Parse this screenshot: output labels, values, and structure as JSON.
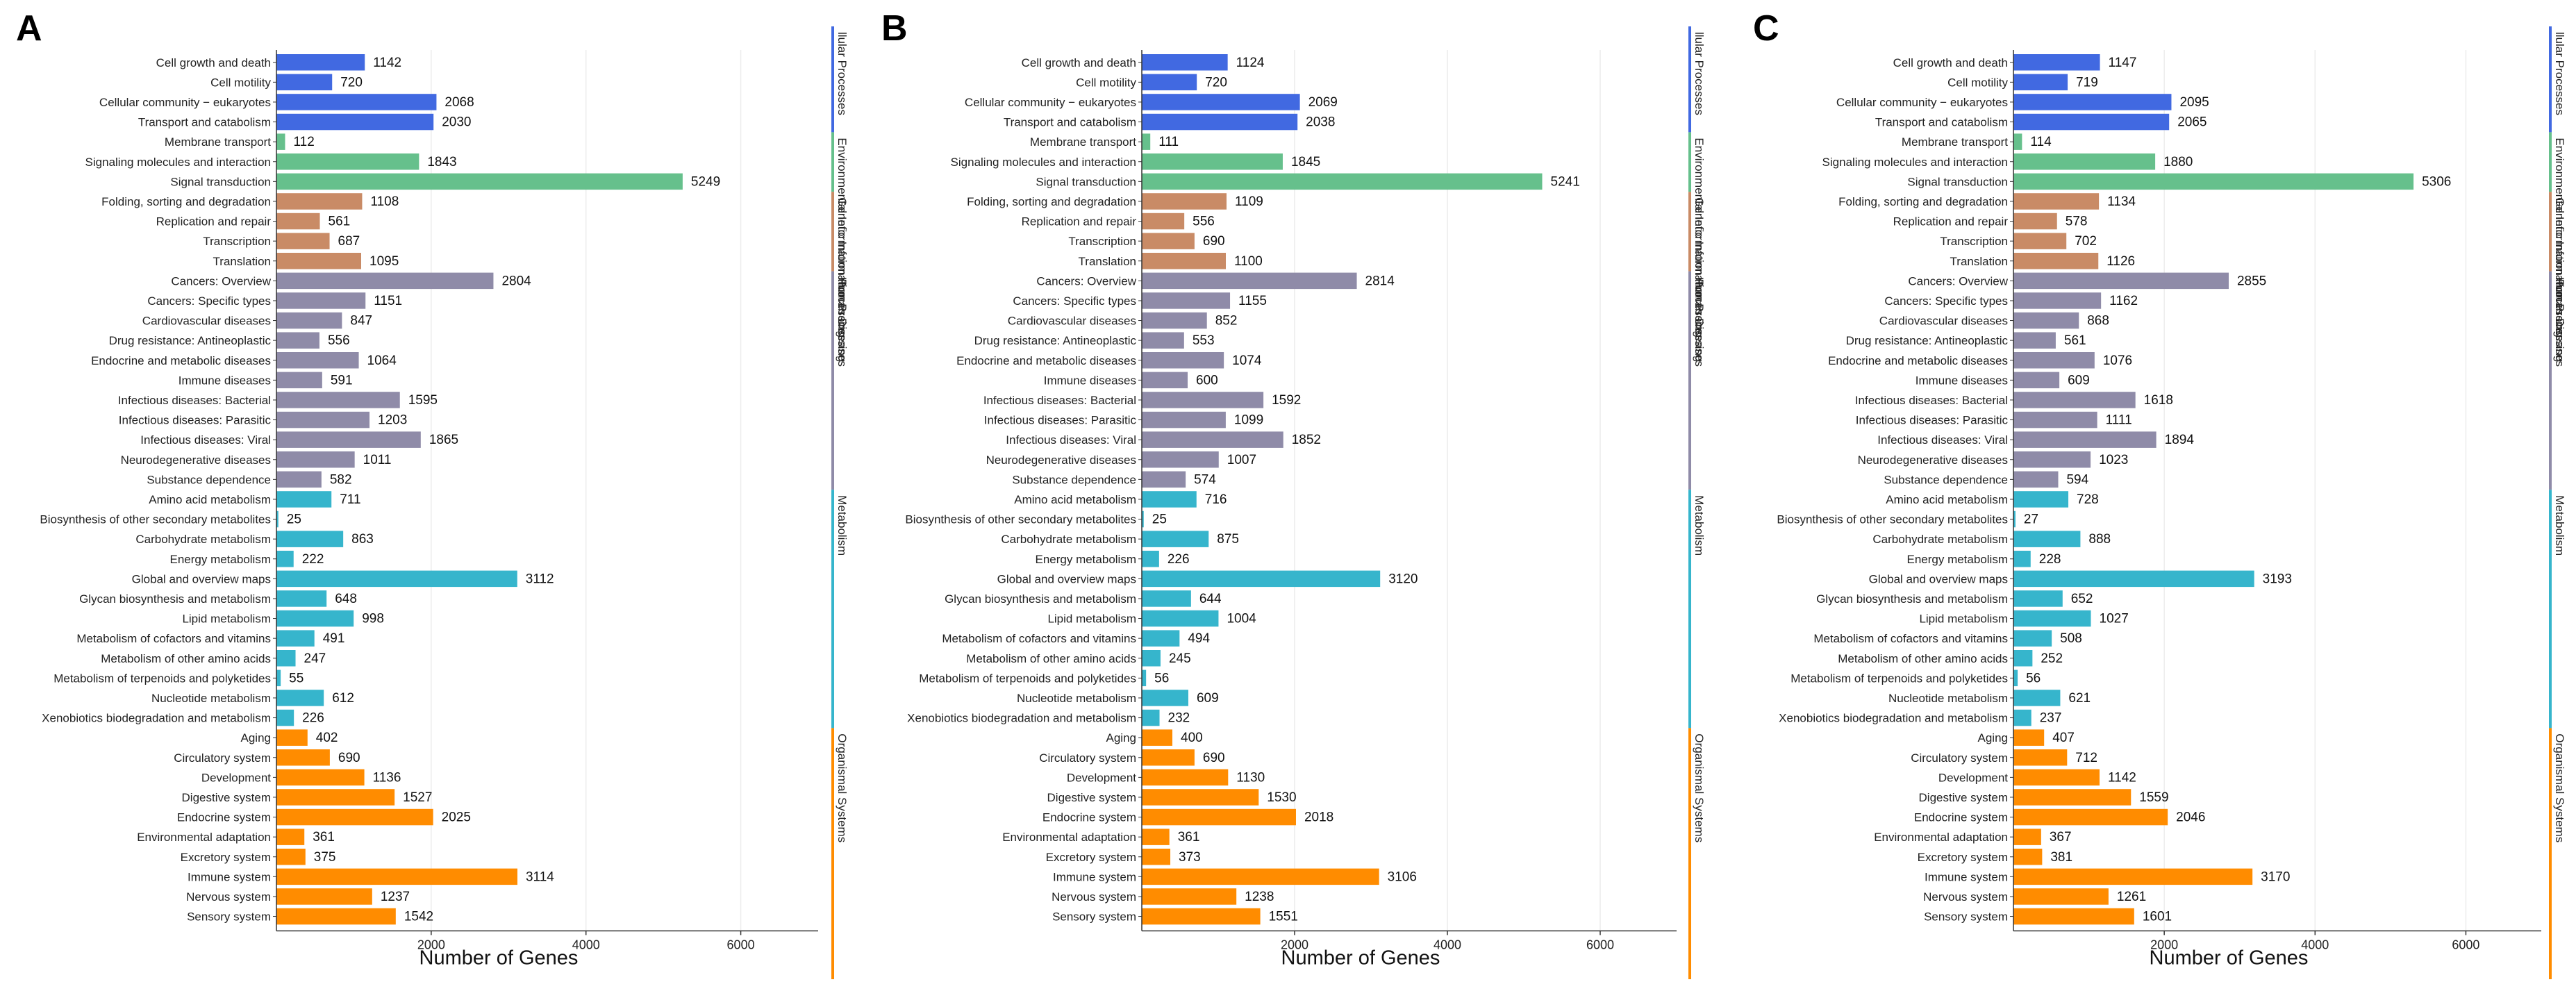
{
  "categories": [
    "Cell growth and death",
    "Cell motility",
    "Cellular community − eukaryotes",
    "Transport and catabolism",
    "Membrane transport",
    "Signaling molecules and interaction",
    "Signal transduction",
    "Folding, sorting and degradation",
    "Replication and repair",
    "Transcription",
    "Translation",
    "Cancers: Overview",
    "Cancers: Specific types",
    "Cardiovascular diseases",
    "Drug resistance: Antineoplastic",
    "Endocrine and metabolic diseases",
    "Immune diseases",
    "Infectious diseases: Bacterial",
    "Infectious diseases: Parasitic",
    "Infectious diseases: Viral",
    "Neurodegenerative diseases",
    "Substance dependence",
    "Amino acid metabolism",
    "Biosynthesis of other secondary metabolites",
    "Carbohydrate metabolism",
    "Energy metabolism",
    "Global and overview maps",
    "Glycan biosynthesis and metabolism",
    "Lipid metabolism",
    "Metabolism of cofactors and vitamins",
    "Metabolism of other amino acids",
    "Metabolism of terpenoids and polyketides",
    "Nucleotide metabolism",
    "Xenobiotics biodegradation and metabolism",
    "Aging",
    "Circulatory system",
    "Development",
    "Digestive system",
    "Endocrine system",
    "Environmental adaptation",
    "Excretory system",
    "Immune system",
    "Nervous system",
    "Sensory system"
  ],
  "groups": [
    {
      "name": "Cellular Processes",
      "label_visible": "llular Processes",
      "color": "#4169E1",
      "start": 0,
      "end": 3
    },
    {
      "name": "Environmental Information Processing",
      "label_visible": "Environmental Information Processing",
      "color": "#66C08C",
      "start": 4,
      "end": 6
    },
    {
      "name": "Genetic Information Processing",
      "label_visible": "Genetic Information Processing",
      "color": "#C98B66",
      "start": 7,
      "end": 10
    },
    {
      "name": "Human Diseases",
      "label_visible": "Human Diseases",
      "color": "#8F8BA8",
      "start": 11,
      "end": 21
    },
    {
      "name": "Metabolism",
      "label_visible": "Metabolism",
      "color": "#36B5CC",
      "start": 22,
      "end": 33
    },
    {
      "name": "Organismal Systems",
      "label_visible": "Organismal Systems",
      "color": "#FF8C00",
      "start": 34,
      "end": 43
    }
  ],
  "chart_data": [
    {
      "type": "bar",
      "panel": "A",
      "xlabel": "Number of Genes",
      "xlim": [
        0,
        7000
      ],
      "xticks": [
        2000,
        4000,
        6000
      ],
      "values": [
        1142,
        720,
        2068,
        2030,
        112,
        1843,
        5249,
        1108,
        561,
        687,
        1095,
        2804,
        1151,
        847,
        556,
        1064,
        591,
        1595,
        1203,
        1865,
        1011,
        582,
        711,
        25,
        863,
        222,
        3112,
        648,
        998,
        491,
        247,
        55,
        612,
        226,
        402,
        690,
        1136,
        1527,
        2025,
        361,
        375,
        3114,
        1237,
        1542
      ]
    },
    {
      "type": "bar",
      "panel": "B",
      "xlabel": "Number of Genes",
      "xlim": [
        0,
        7000
      ],
      "xticks": [
        2000,
        4000,
        6000
      ],
      "values": [
        1124,
        720,
        2069,
        2038,
        111,
        1845,
        5241,
        1109,
        556,
        690,
        1100,
        2814,
        1155,
        852,
        553,
        1074,
        600,
        1592,
        1099,
        1852,
        1007,
        574,
        716,
        25,
        875,
        226,
        3120,
        644,
        1004,
        494,
        245,
        56,
        609,
        232,
        400,
        690,
        1130,
        1530,
        2018,
        361,
        373,
        3106,
        1238,
        1551
      ]
    },
    {
      "type": "bar",
      "panel": "C",
      "xlabel": "Number of Genes",
      "xlim": [
        0,
        7000
      ],
      "xticks": [
        2000,
        4000,
        6000
      ],
      "values": [
        1147,
        719,
        2095,
        2065,
        114,
        1880,
        5306,
        1134,
        578,
        702,
        1126,
        2855,
        1162,
        868,
        561,
        1076,
        609,
        1618,
        1111,
        1894,
        1023,
        594,
        728,
        27,
        888,
        228,
        3193,
        652,
        1027,
        508,
        252,
        56,
        621,
        237,
        407,
        712,
        1142,
        1559,
        2046,
        367,
        381,
        3170,
        1261,
        1601
      ]
    }
  ]
}
